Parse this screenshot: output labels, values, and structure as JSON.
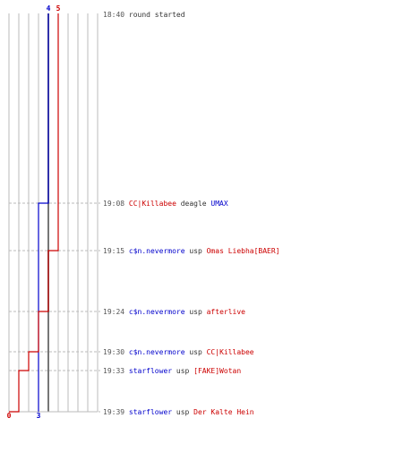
{
  "chart_data": {
    "type": "line",
    "series": [
      {
        "team": "blue",
        "color": "#0000cc",
        "start_label": "4",
        "end_label": "3",
        "steps": [
          {
            "time": "18:40",
            "value": 4
          },
          {
            "time": "19:08",
            "value": 3
          },
          {
            "time": "19:39",
            "value": 3
          }
        ]
      },
      {
        "team": "red",
        "color": "#cc0000",
        "start_label": "5",
        "end_label": "0",
        "steps": [
          {
            "time": "18:40",
            "value": 5
          },
          {
            "time": "19:15",
            "value": 4
          },
          {
            "time": "19:24",
            "value": 3
          },
          {
            "time": "19:30",
            "value": 2
          },
          {
            "time": "19:33",
            "value": 1
          },
          {
            "time": "19:39",
            "value": 0
          }
        ]
      }
    ],
    "grid": true,
    "xlim": [
      0,
      9
    ]
  },
  "colors": {
    "blue": "#0000cc",
    "red": "#cc0000",
    "neutral": "#333333",
    "time": "#555555",
    "grid": "#bbbbbb",
    "dash": "#bbbbbb"
  },
  "events": [
    {
      "time": "18:40",
      "parts": [
        {
          "text": "round started",
          "team": "neutral"
        }
      ]
    },
    {
      "time": "19:08",
      "parts": [
        {
          "text": "CC|Killabee",
          "team": "red"
        },
        {
          "text": "deagle",
          "team": "neutral"
        },
        {
          "text": "UMAX",
          "team": "blue"
        }
      ]
    },
    {
      "time": "19:15",
      "parts": [
        {
          "text": "c$n.nevermore",
          "team": "blue"
        },
        {
          "text": "usp",
          "team": "neutral"
        },
        {
          "text": "Omas Liebha[BAER]",
          "team": "red"
        }
      ]
    },
    {
      "time": "19:24",
      "parts": [
        {
          "text": "c$n.nevermore",
          "team": "blue"
        },
        {
          "text": "usp",
          "team": "neutral"
        },
        {
          "text": "afterlive",
          "team": "red"
        }
      ]
    },
    {
      "time": "19:30",
      "parts": [
        {
          "text": "c$n.nevermore",
          "team": "blue"
        },
        {
          "text": "usp",
          "team": "neutral"
        },
        {
          "text": "CC|Killabee",
          "team": "red"
        }
      ]
    },
    {
      "time": "19:33",
      "parts": [
        {
          "text": "starflower",
          "team": "blue"
        },
        {
          "text": "usp",
          "team": "neutral"
        },
        {
          "text": "[FAKE]Wotan",
          "team": "red"
        }
      ]
    },
    {
      "time": "19:39",
      "parts": [
        {
          "text": "starflower",
          "team": "blue"
        },
        {
          "text": "usp",
          "team": "neutral"
        },
        {
          "text": "Der Kalte Hein",
          "team": "red"
        }
      ]
    }
  ]
}
